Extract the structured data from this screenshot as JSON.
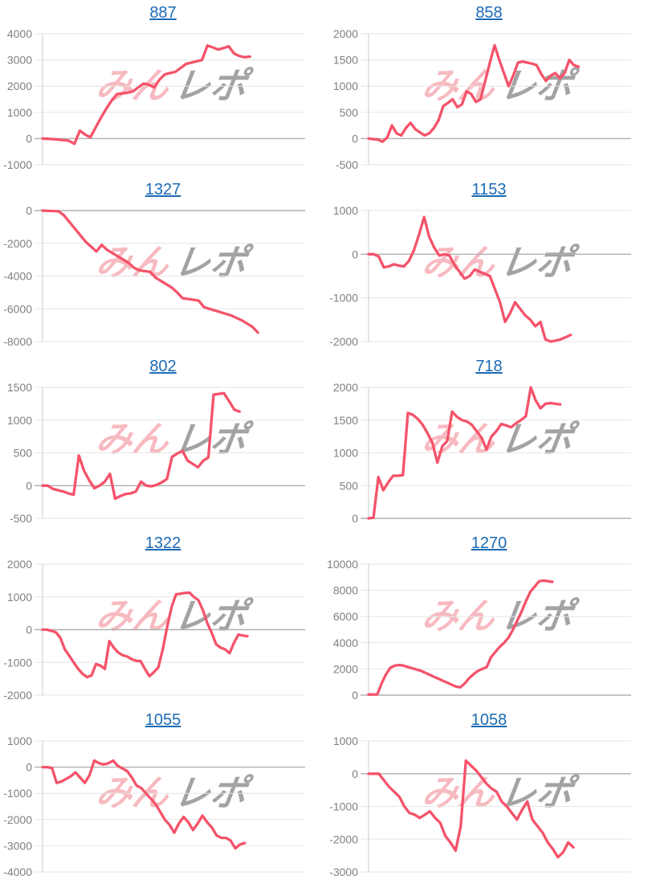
{
  "page": {
    "background": "#ffffff"
  },
  "watermark": {
    "text_pink": "みん",
    "text_gray": "レポ",
    "pink_color": "#eb5a69",
    "gray_color": "#808080"
  },
  "style": {
    "line_color": "#f4536a",
    "grid_color": "#e6e6e6",
    "zero_line_color": "#b0b0b0",
    "axis_line_color": "#cccccc",
    "tick_label_color": "#808080",
    "title_color": "#1b6bb5"
  },
  "chart_data": [
    {
      "type": "line",
      "title": "887",
      "ylim": [
        -1000,
        4000
      ],
      "yticks": [
        4000,
        3000,
        2000,
        1000,
        0,
        -1000
      ],
      "x_end_frac": 0.79,
      "values": [
        0,
        -10,
        -20,
        -40,
        -60,
        -90,
        -200,
        300,
        150,
        50,
        430,
        800,
        1150,
        1450,
        1700,
        1720,
        1750,
        1800,
        1950,
        2100,
        2050,
        1950,
        2250,
        2450,
        2500,
        2550,
        2700,
        2850,
        2900,
        2950,
        3000,
        3550,
        3480,
        3400,
        3450,
        3520,
        3250,
        3150,
        3100,
        3130
      ]
    },
    {
      "type": "line",
      "title": "858",
      "ylim": [
        -500,
        2000
      ],
      "yticks": [
        2000,
        1500,
        1000,
        500,
        0,
        -500
      ],
      "x_end_frac": 0.8,
      "values": [
        0,
        -10,
        -20,
        -60,
        20,
        250,
        100,
        60,
        200,
        300,
        180,
        120,
        60,
        100,
        200,
        350,
        620,
        680,
        750,
        600,
        650,
        900,
        850,
        700,
        750,
        1100,
        1450,
        1780,
        1500,
        1250,
        1000,
        1200,
        1450,
        1470,
        1450,
        1430,
        1400,
        1230,
        1100,
        1200,
        1250,
        1150,
        1250,
        1500,
        1400,
        1370
      ]
    },
    {
      "type": "line",
      "title": "1327",
      "ylim": [
        -8000,
        0
      ],
      "yticks": [
        0,
        -2000,
        -4000,
        -6000,
        -8000
      ],
      "x_end_frac": 0.82,
      "values": [
        0,
        -20,
        -30,
        -50,
        -300,
        -700,
        -1100,
        -1500,
        -1900,
        -2200,
        -2500,
        -2100,
        -2400,
        -2600,
        -2800,
        -3000,
        -3200,
        -3500,
        -3650,
        -3700,
        -3750,
        -4100,
        -4300,
        -4500,
        -4700,
        -5000,
        -5350,
        -5400,
        -5450,
        -5500,
        -5900,
        -6000,
        -6100,
        -6200,
        -6300,
        -6400,
        -6550,
        -6700,
        -6900,
        -7100,
        -7450
      ]
    },
    {
      "type": "line",
      "title": "1153",
      "ylim": [
        -2000,
        1000
      ],
      "yticks": [
        1000,
        0,
        -1000,
        -2000
      ],
      "x_end_frac": 0.77,
      "values": [
        0,
        0,
        -50,
        -300,
        -280,
        -230,
        -260,
        -280,
        -150,
        100,
        450,
        850,
        400,
        150,
        -30,
        0,
        -30,
        -250,
        -400,
        -560,
        -500,
        -350,
        -400,
        -450,
        -500,
        -800,
        -1100,
        -1550,
        -1350,
        -1100,
        -1250,
        -1400,
        -1500,
        -1650,
        -1550,
        -1950,
        -2000,
        -1980,
        -1950,
        -1900,
        -1850
      ]
    },
    {
      "type": "line",
      "title": "802",
      "ylim": [
        -500,
        1500
      ],
      "yticks": [
        1500,
        1000,
        500,
        0,
        -500
      ],
      "x_end_frac": 0.75,
      "values": [
        0,
        0,
        -50,
        -70,
        -90,
        -120,
        -140,
        460,
        230,
        80,
        -40,
        0,
        60,
        180,
        -200,
        -160,
        -130,
        -120,
        -90,
        60,
        0,
        -10,
        10,
        50,
        100,
        440,
        490,
        530,
        380,
        330,
        280,
        380,
        430,
        1390,
        1400,
        1410,
        1290,
        1160,
        1130
      ]
    },
    {
      "type": "line",
      "title": "718",
      "ylim": [
        0,
        2000
      ],
      "yticks": [
        2000,
        1500,
        1000,
        500,
        0
      ],
      "x_end_frac": 0.73,
      "values": [
        0,
        10,
        630,
        430,
        550,
        650,
        650,
        660,
        1610,
        1580,
        1520,
        1430,
        1300,
        1150,
        850,
        1100,
        1180,
        1630,
        1550,
        1500,
        1480,
        1430,
        1330,
        1230,
        1050,
        1250,
        1330,
        1440,
        1420,
        1390,
        1450,
        1500,
        1560,
        2000,
        1800,
        1680,
        1750,
        1760,
        1750,
        1740
      ]
    },
    {
      "type": "line",
      "title": "1322",
      "ylim": [
        -2000,
        2000
      ],
      "yticks": [
        2000,
        1000,
        0,
        -1000,
        -2000
      ],
      "x_end_frac": 0.78,
      "values": [
        0,
        0,
        -40,
        -80,
        -250,
        -600,
        -800,
        -1000,
        -1200,
        -1350,
        -1450,
        -1400,
        -1050,
        -1100,
        -1200,
        -350,
        -550,
        -700,
        -780,
        -820,
        -900,
        -950,
        -960,
        -1200,
        -1420,
        -1300,
        -1150,
        -600,
        100,
        700,
        1080,
        1100,
        1120,
        1130,
        1000,
        900,
        600,
        200,
        -100,
        -450,
        -550,
        -600,
        -720,
        -400,
        -150,
        -180,
        -200
      ]
    },
    {
      "type": "line",
      "title": "1270",
      "ylim": [
        0,
        10000
      ],
      "yticks": [
        10000,
        8000,
        6000,
        4000,
        2000,
        0
      ],
      "x_end_frac": 0.7,
      "values": [
        50,
        50,
        60,
        900,
        1600,
        2100,
        2250,
        2300,
        2250,
        2150,
        2050,
        1950,
        1850,
        1700,
        1550,
        1400,
        1250,
        1100,
        950,
        800,
        650,
        600,
        900,
        1300,
        1600,
        1850,
        2000,
        2150,
        2900,
        3300,
        3700,
        4000,
        4400,
        5000,
        5700,
        6400,
        7200,
        7900,
        8300,
        8700,
        8750,
        8700,
        8650
      ]
    },
    {
      "type": "line",
      "title": "1055",
      "ylim": [
        -4000,
        1000
      ],
      "yticks": [
        1000,
        0,
        -1000,
        -2000,
        -3000,
        -4000
      ],
      "x_end_frac": 0.77,
      "values": [
        0,
        0,
        -30,
        -600,
        -550,
        -450,
        -350,
        -200,
        -400,
        -600,
        -300,
        250,
        150,
        100,
        150,
        250,
        50,
        -50,
        -150,
        -400,
        -700,
        -800,
        -1000,
        -1200,
        -1400,
        -1700,
        -2000,
        -2200,
        -2500,
        -2150,
        -1900,
        -2100,
        -2400,
        -2150,
        -1850,
        -2100,
        -2300,
        -2600,
        -2700,
        -2700,
        -2800,
        -3100,
        -2950,
        -2900
      ]
    },
    {
      "type": "line",
      "title": "1058",
      "ylim": [
        -3000,
        1000
      ],
      "yticks": [
        1000,
        0,
        -1000,
        -2000,
        -3000
      ],
      "x_end_frac": 0.78,
      "values": [
        0,
        0,
        0,
        -200,
        -400,
        -550,
        -700,
        -1000,
        -1200,
        -1250,
        -1350,
        -1250,
        -1150,
        -1350,
        -1500,
        -1900,
        -2100,
        -2350,
        -1600,
        400,
        250,
        100,
        -100,
        -300,
        -450,
        -550,
        -850,
        -1000,
        -1200,
        -1400,
        -1100,
        -850,
        -1400,
        -1600,
        -1800,
        -2100,
        -2300,
        -2550,
        -2400,
        -2100,
        -2250
      ]
    }
  ]
}
